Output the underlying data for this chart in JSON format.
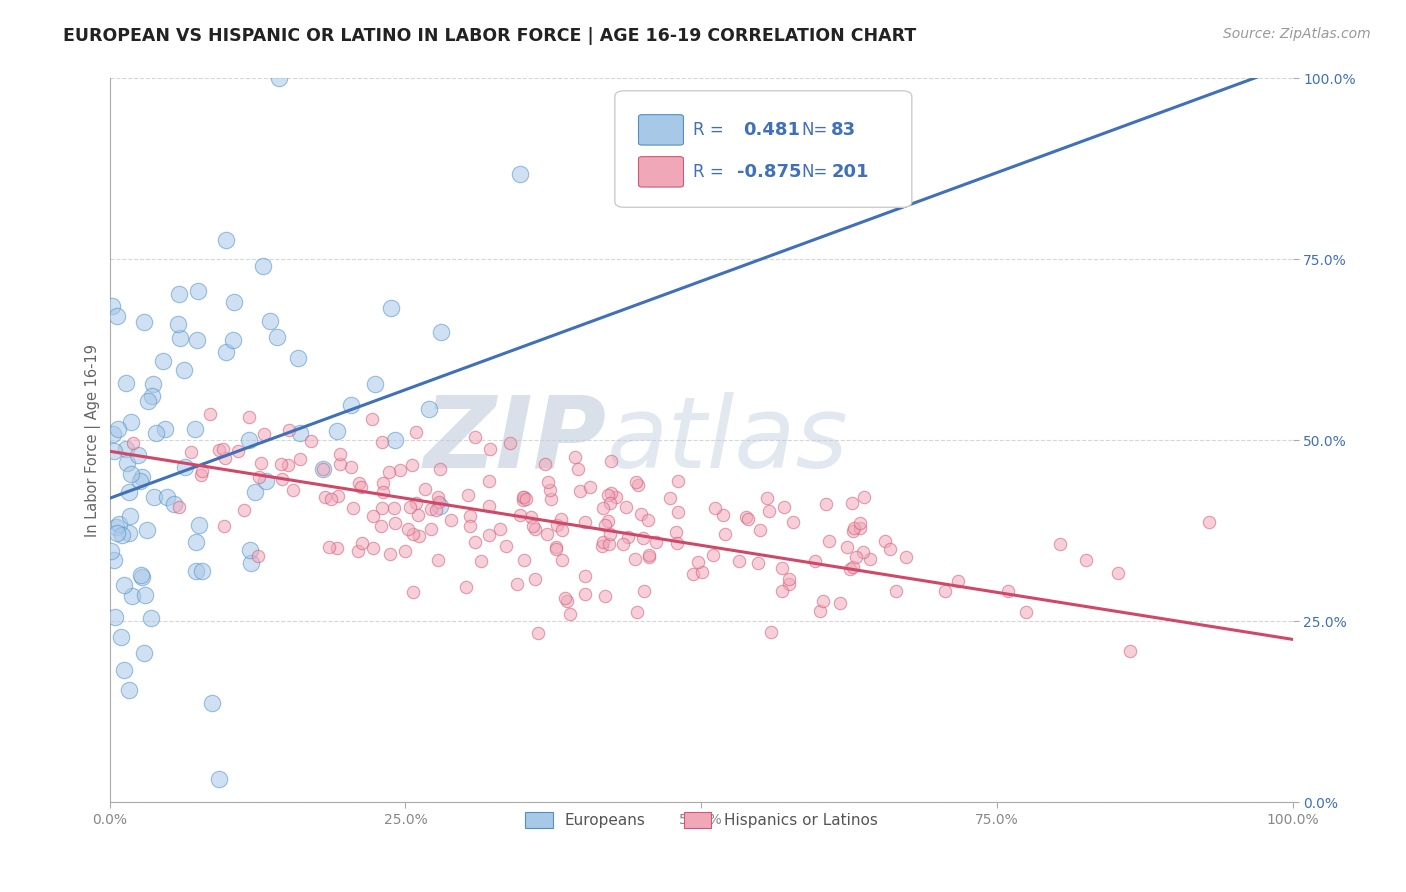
{
  "title": "EUROPEAN VS HISPANIC OR LATINO IN LABOR FORCE | AGE 16-19 CORRELATION CHART",
  "source_text": "Source: ZipAtlas.com",
  "ylabel": "In Labor Force | Age 16-19",
  "watermark_zip": "ZIP",
  "watermark_atlas": "atlas",
  "xmin": 0.0,
  "xmax": 1.0,
  "ymin": 0.0,
  "ymax": 1.0,
  "blue_R": "0.481",
  "blue_N": "83",
  "pink_R": "-0.875",
  "pink_N": "201",
  "blue_fill": "#A8C8E8",
  "blue_edge": "#5090C8",
  "pink_fill": "#F0A8B8",
  "pink_edge": "#D05878",
  "blue_line_color": "#4070B8",
  "pink_line_color": "#D04868",
  "blue_label_color": "#4070B8",
  "pink_label_color": "#D04868",
  "title_fontsize": 12.5,
  "source_fontsize": 10,
  "watermark_color_zip": "#C8D8EC",
  "watermark_color_atlas": "#C8D8EC",
  "watermark_fontsize": 72,
  "grid_color": "#CCCCCC",
  "background_color": "#FFFFFF",
  "ytick_labels": [
    "0.0%",
    "25.0%",
    "50.0%",
    "75.0%",
    "100.0%"
  ],
  "ytick_values": [
    0.0,
    0.25,
    0.5,
    0.75,
    1.0
  ],
  "xtick_labels": [
    "0.0%",
    "25.0%",
    "50.0%",
    "75.0%",
    "100.0%"
  ],
  "xtick_values": [
    0.0,
    0.25,
    0.5,
    0.75,
    1.0
  ],
  "blue_line_x0": 0.0,
  "blue_line_y0": 0.42,
  "blue_line_x1": 1.0,
  "blue_line_y1": 1.02,
  "pink_line_x0": 0.0,
  "pink_line_y0": 0.485,
  "pink_line_x1": 1.0,
  "pink_line_y1": 0.225,
  "tick_label_color": "#888888",
  "axis_color": "#AAAAAA"
}
